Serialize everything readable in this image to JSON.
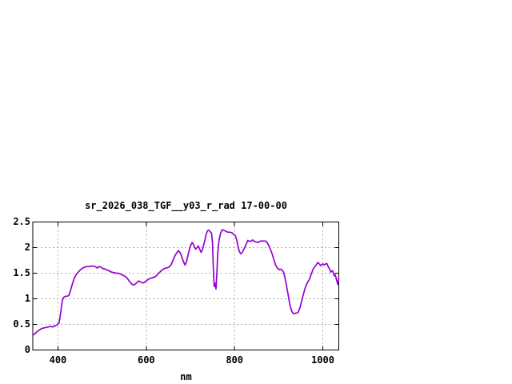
{
  "page": {
    "background": "#ffffff"
  },
  "chart_data": {
    "type": "line",
    "title": "sr_2026_038_TGF__y03_r_rad 17-00-00",
    "xlabel": "nm",
    "ylabel": "",
    "xlim": [
      343,
      1036
    ],
    "ylim": [
      0,
      2.5
    ],
    "xticks": {
      "values": [
        400,
        600,
        800,
        1000
      ],
      "labels": [
        "400",
        "600",
        "800",
        "1000"
      ]
    },
    "yticks": {
      "values": [
        0,
        0.5,
        1,
        1.5,
        2,
        2.5
      ],
      "labels": [
        "0",
        "0.5",
        "1",
        "1.5",
        "2",
        "2.5"
      ]
    },
    "grid": true,
    "legend": "none",
    "colors": {
      "line": "#9400d3",
      "grid": "#a9a9a9",
      "axis": "#000000",
      "text": "#000000",
      "background": "#ffffff"
    },
    "series": [
      {
        "name": "sr_2026_038_TGF__y03_r_rad",
        "x": [
          343,
          348,
          353,
          358,
          363,
          368,
          373,
          378,
          383,
          388,
          393,
          398,
          402,
          404,
          406,
          408,
          410,
          413,
          417,
          421,
          425,
          429,
          433,
          437,
          441,
          446,
          451,
          456,
          461,
          466,
          471,
          476,
          481,
          486,
          489,
          493,
          497,
          502,
          507,
          512,
          517,
          522,
          527,
          532,
          537,
          542,
          547,
          552,
          557,
          562,
          566,
          570,
          574,
          578,
          583,
          587,
          592,
          596,
          600,
          605,
          609,
          613,
          618,
          623,
          628,
          633,
          637,
          641,
          645,
          649,
          653,
          657,
          661,
          665,
          669,
          673,
          676,
          679,
          682,
          685,
          688,
          691,
          694,
          697,
          700,
          704,
          707,
          710,
          712,
          715,
          718,
          721,
          724,
          727,
          730,
          733,
          736,
          739,
          742,
          745,
          748,
          750,
          752,
          754,
          756,
          758,
          760,
          762,
          765,
          768,
          772,
          775,
          778,
          782,
          786,
          790,
          794,
          798,
          802,
          805,
          808,
          811,
          814,
          817,
          820,
          823,
          827,
          830,
          834,
          838,
          841,
          845,
          849,
          853,
          857,
          861,
          865,
          869,
          873,
          877,
          881,
          885,
          889,
          893,
          897,
          901,
          905,
          908,
          911,
          914,
          917,
          920,
          923,
          926,
          929,
          932,
          935,
          938,
          941,
          944,
          948,
          951,
          954,
          957,
          960,
          963,
          966,
          969,
          972,
          975,
          978,
          981,
          984,
          987,
          989,
          992,
          995,
          998,
          1000,
          1003,
          1006,
          1009,
          1012,
          1015,
          1018,
          1020,
          1022,
          1024,
          1026,
          1028,
          1030,
          1032,
          1034,
          1035,
          1036
        ],
        "y": [
          0.29,
          0.32,
          0.36,
          0.39,
          0.42,
          0.43,
          0.44,
          0.45,
          0.46,
          0.45,
          0.47,
          0.49,
          0.52,
          0.6,
          0.72,
          0.85,
          0.97,
          1.03,
          1.05,
          1.05,
          1.07,
          1.18,
          1.3,
          1.4,
          1.47,
          1.52,
          1.57,
          1.6,
          1.62,
          1.63,
          1.63,
          1.64,
          1.64,
          1.62,
          1.6,
          1.63,
          1.62,
          1.59,
          1.58,
          1.56,
          1.54,
          1.52,
          1.51,
          1.5,
          1.5,
          1.48,
          1.46,
          1.44,
          1.4,
          1.34,
          1.3,
          1.27,
          1.28,
          1.31,
          1.35,
          1.33,
          1.31,
          1.32,
          1.35,
          1.38,
          1.4,
          1.41,
          1.42,
          1.45,
          1.5,
          1.54,
          1.57,
          1.59,
          1.6,
          1.61,
          1.63,
          1.68,
          1.76,
          1.84,
          1.9,
          1.94,
          1.91,
          1.86,
          1.78,
          1.71,
          1.66,
          1.72,
          1.83,
          1.94,
          2.03,
          2.1,
          2.06,
          2.0,
          1.97,
          2.0,
          2.03,
          1.97,
          1.91,
          1.95,
          2.05,
          2.15,
          2.27,
          2.33,
          2.34,
          2.31,
          2.28,
          2.1,
          1.6,
          1.24,
          1.3,
          1.19,
          1.5,
          1.9,
          2.15,
          2.27,
          2.35,
          2.34,
          2.33,
          2.31,
          2.3,
          2.3,
          2.29,
          2.26,
          2.23,
          2.15,
          2.02,
          1.92,
          1.88,
          1.9,
          1.95,
          2.0,
          2.08,
          2.14,
          2.12,
          2.13,
          2.15,
          2.12,
          2.11,
          2.1,
          2.12,
          2.13,
          2.13,
          2.13,
          2.11,
          2.05,
          1.97,
          1.88,
          1.77,
          1.66,
          1.6,
          1.57,
          1.58,
          1.56,
          1.52,
          1.42,
          1.29,
          1.15,
          1.0,
          0.86,
          0.77,
          0.72,
          0.71,
          0.72,
          0.72,
          0.74,
          0.82,
          0.92,
          1.02,
          1.12,
          1.21,
          1.28,
          1.33,
          1.37,
          1.44,
          1.51,
          1.58,
          1.62,
          1.65,
          1.69,
          1.71,
          1.68,
          1.65,
          1.67,
          1.68,
          1.66,
          1.68,
          1.69,
          1.63,
          1.59,
          1.52,
          1.54,
          1.55,
          1.5,
          1.45,
          1.47,
          1.41,
          1.34,
          1.28,
          1.33,
          1.4
        ]
      }
    ]
  }
}
